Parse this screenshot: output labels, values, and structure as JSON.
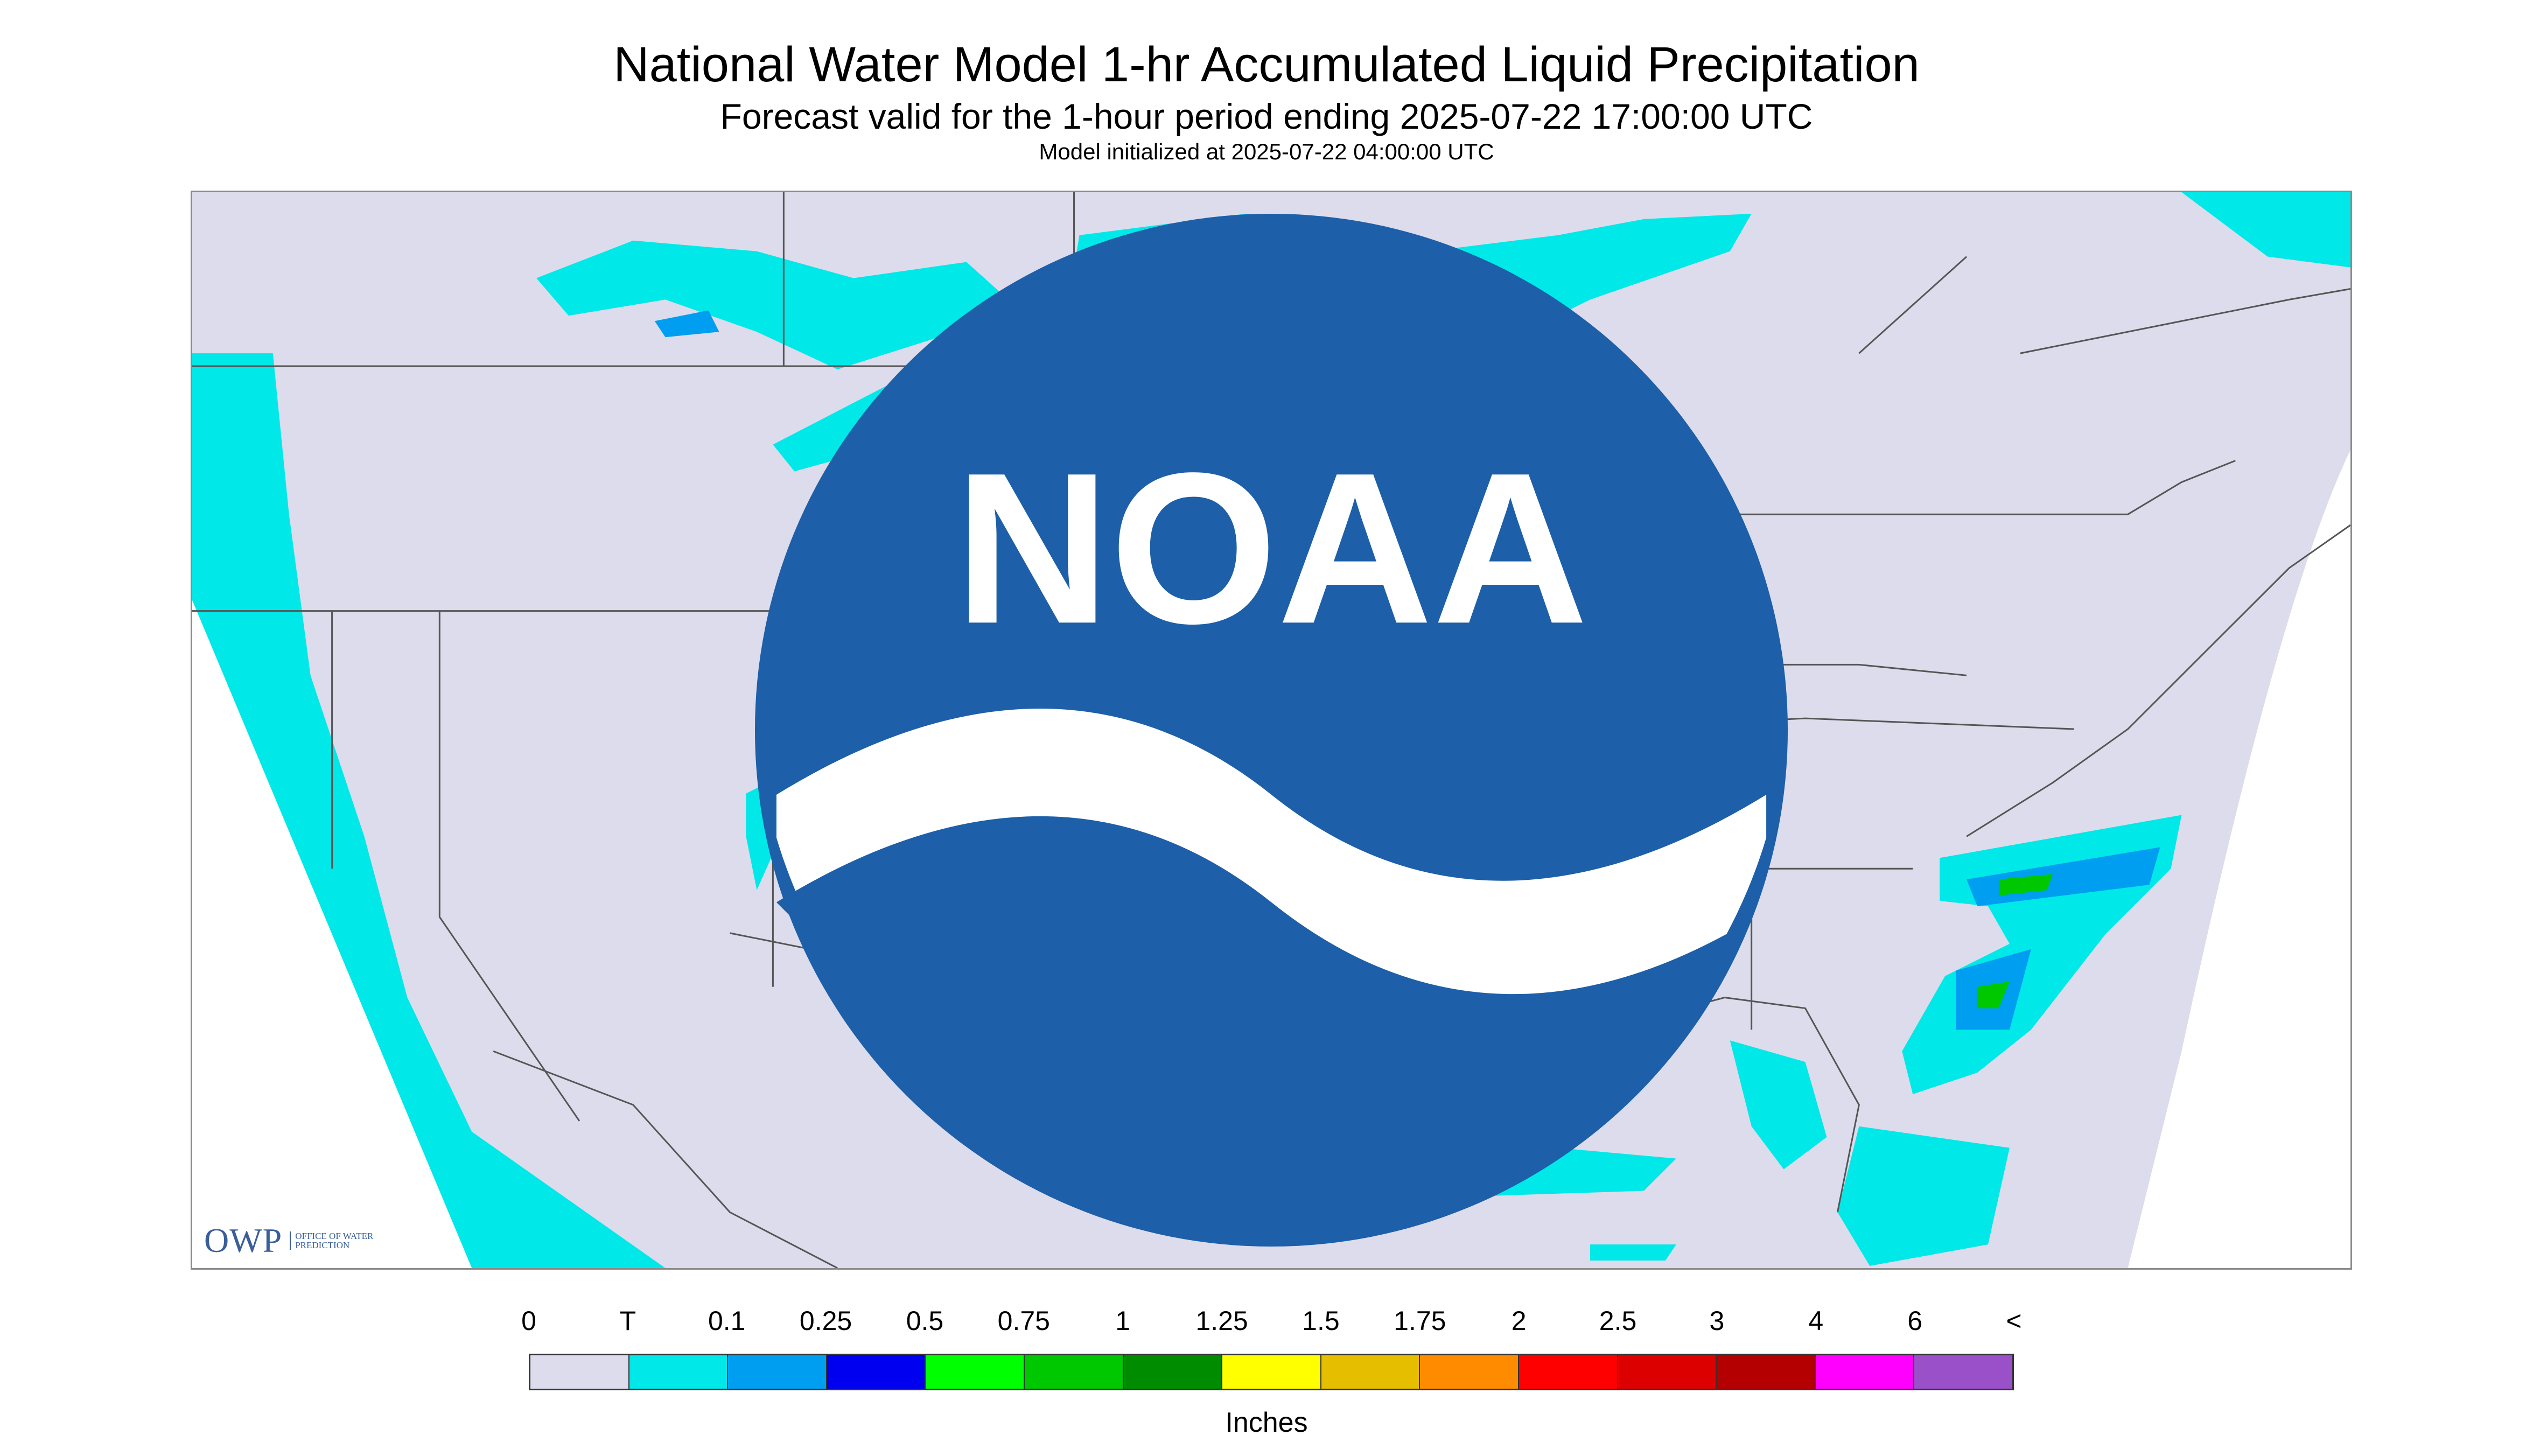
{
  "header": {
    "title": "National Water Model 1-hr Accumulated Liquid Precipitation",
    "subtitle": "Forecast valid for the 1-hour period ending 2025-07-22 17:00:00 UTC",
    "init": "Model initialized at 2025-07-22 04:00:00 UTC"
  },
  "map": {
    "background_color": "#dcdcec",
    "outside_domain_color": "#ffffff",
    "light_precip_color": "#00e8e8",
    "boundary_color": "#555555"
  },
  "logos": {
    "owp_text": "OWP",
    "owp_caption": "OFFICE OF WATER PREDICTION",
    "noaa_text": "NOAA"
  },
  "legend": {
    "labels": [
      "0",
      "T",
      "0.1",
      "0.25",
      "0.5",
      "0.75",
      "1",
      "1.25",
      "1.5",
      "1.75",
      "2",
      "2.5",
      "3",
      "4",
      "6",
      "<"
    ],
    "colors": [
      "#dcdcec",
      "#00e8e8",
      "#009ef0",
      "#0000f0",
      "#00ff00",
      "#00c800",
      "#008c00",
      "#ffff00",
      "#e6be00",
      "#ff8c00",
      "#ff0000",
      "#dc0000",
      "#b40000",
      "#ff00ff",
      "#9a50c8"
    ],
    "units": "Inches"
  }
}
